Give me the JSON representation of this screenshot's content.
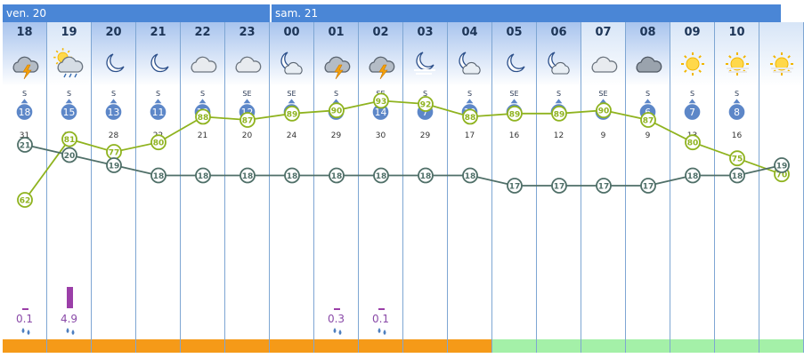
{
  "days": [
    {
      "label": "ven. 20"
    },
    {
      "label": "sam. 21"
    }
  ],
  "colors": {
    "dayHeader": "#4a86d6",
    "nightBg": "#a8c4ee",
    "dayBg": "#d7e5f7",
    "tempLine": "#4f6f68",
    "humLine": "#8fb31f",
    "windBadge": "#5d87c8",
    "precip": "#9b3fa8",
    "stripOrange": "#f59a18",
    "stripGreen": "#a4f0a8"
  },
  "columns": [
    {
      "hour": "18",
      "icon": "thunder-cloud-icon",
      "night": true,
      "dir": "S",
      "wind": "18",
      "gust": "31",
      "temp": 21,
      "hum": 62,
      "rain": "0.1",
      "rainLevel": 0.02,
      "strip": "orange"
    },
    {
      "hour": "19",
      "icon": "sun-rain-cloud-icon",
      "night": false,
      "dir": "S",
      "wind": "15",
      "gust": "30",
      "temp": 20,
      "hum": 81,
      "rain": "4.9",
      "rainLevel": 1.0,
      "strip": "orange"
    },
    {
      "hour": "20",
      "icon": "moon-icon",
      "night": true,
      "dir": "S",
      "wind": "13",
      "gust": "28",
      "temp": 19,
      "hum": 77,
      "rain": "",
      "rainLevel": 0,
      "strip": "orange"
    },
    {
      "hour": "21",
      "icon": "moon-icon",
      "night": true,
      "dir": "S",
      "wind": "11",
      "gust": "22",
      "temp": 18,
      "hum": 80,
      "rain": "",
      "rainLevel": 0,
      "strip": "orange"
    },
    {
      "hour": "22",
      "icon": "cloud-icon",
      "night": true,
      "dir": "S",
      "wind": "12",
      "gust": "21",
      "temp": 18,
      "hum": 88,
      "rain": "",
      "rainLevel": 0,
      "strip": "orange"
    },
    {
      "hour": "23",
      "icon": "cloud-icon",
      "night": true,
      "dir": "SE",
      "wind": "12",
      "gust": "20",
      "temp": 18,
      "hum": 87,
      "rain": "",
      "rainLevel": 0,
      "strip": "orange"
    },
    {
      "hour": "00",
      "icon": "moon-cloud-icon",
      "night": true,
      "dir": "SE",
      "wind": "15",
      "gust": "24",
      "temp": 18,
      "hum": 89,
      "rain": "",
      "rainLevel": 0,
      "strip": "orange"
    },
    {
      "hour": "01",
      "icon": "thunder-cloud-icon",
      "night": true,
      "dir": "S",
      "wind": "18",
      "gust": "29",
      "temp": 18,
      "hum": 90,
      "rain": "0.3",
      "rainLevel": 0.02,
      "strip": "orange"
    },
    {
      "hour": "02",
      "icon": "thunder-cloud-icon",
      "night": true,
      "dir": "SE",
      "wind": "14",
      "gust": "30",
      "temp": 18,
      "hum": 93,
      "rain": "0.1",
      "rainLevel": 0.02,
      "strip": "orange"
    },
    {
      "hour": "03",
      "icon": "moon-fog-icon",
      "night": true,
      "dir": "S",
      "wind": "7",
      "gust": "29",
      "temp": 18,
      "hum": 92,
      "rain": "",
      "rainLevel": 0,
      "strip": "orange"
    },
    {
      "hour": "04",
      "icon": "moon-cloud-icon",
      "night": true,
      "dir": "S",
      "wind": "10",
      "gust": "17",
      "temp": 18,
      "hum": 88,
      "rain": "",
      "rainLevel": 0,
      "strip": "orange"
    },
    {
      "hour": "05",
      "icon": "moon-icon",
      "night": true,
      "dir": "SE",
      "wind": "7",
      "gust": "16",
      "temp": 17,
      "hum": 89,
      "rain": "",
      "rainLevel": 0,
      "strip": "green"
    },
    {
      "hour": "06",
      "icon": "moon-cloud-icon",
      "night": true,
      "dir": "S",
      "wind": "5",
      "gust": "12",
      "temp": 17,
      "hum": 89,
      "rain": "",
      "rainLevel": 0,
      "strip": "green"
    },
    {
      "hour": "07",
      "icon": "cloud-icon",
      "night": false,
      "dir": "SE",
      "wind": "5",
      "gust": "9",
      "temp": 17,
      "hum": 90,
      "rain": "",
      "rainLevel": 0,
      "strip": "green"
    },
    {
      "hour": "08",
      "icon": "dark-cloud-icon",
      "night": true,
      "dir": "S",
      "wind": "6",
      "gust": "9",
      "temp": 17,
      "hum": 87,
      "rain": "",
      "rainLevel": 0,
      "strip": "green"
    },
    {
      "hour": "09",
      "icon": "sun-icon",
      "night": false,
      "dir": "S",
      "wind": "7",
      "gust": "13",
      "temp": 18,
      "hum": 80,
      "rain": "",
      "rainLevel": 0,
      "strip": "green"
    },
    {
      "hour": "10",
      "icon": "sun-haze-icon",
      "night": false,
      "dir": "S",
      "wind": "8",
      "gust": "16",
      "temp": 18,
      "hum": 75,
      "rain": "",
      "rainLevel": 0,
      "strip": "green"
    },
    {
      "hour": "",
      "icon": "sun-haze-icon",
      "night": false,
      "dir": "",
      "wind": "",
      "gust": "",
      "temp": 19,
      "hum": 70,
      "rain": "",
      "rainLevel": 0,
      "strip": "green"
    }
  ]
}
